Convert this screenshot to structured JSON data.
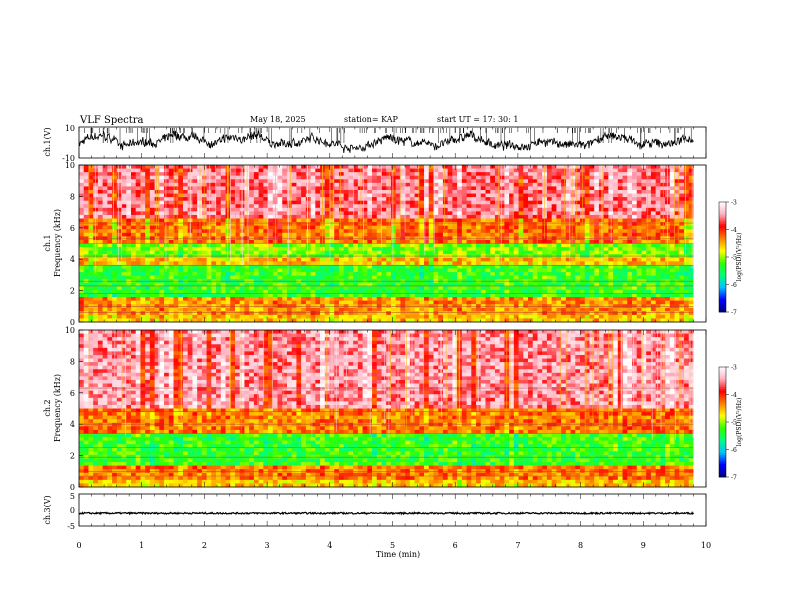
{
  "header": {
    "title": "VLF Spectra",
    "date": "May 18, 2025",
    "station": "station= KAP",
    "start": "start  UT  =   17: 30: 1"
  },
  "chart_data": [
    {
      "type": "line",
      "panel": "ch1-waveform",
      "ylabel": "ch.1(V)",
      "ylim": [
        -10,
        10
      ],
      "yticks": [
        "10",
        "-10"
      ],
      "xlim": [
        0,
        10
      ],
      "color": "#000000",
      "note": "noisy broadband voltage trace, amplitude roughly -6 to +5 V"
    },
    {
      "type": "heatmap",
      "panel": "ch1-spectrogram",
      "ylabel": "ch.1",
      "ylabel2": "Frequency (kHz)",
      "ylim": [
        0,
        10
      ],
      "yticks": [
        "0",
        "2",
        "4",
        "6",
        "8",
        "10"
      ],
      "xlim": [
        0,
        9.8
      ],
      "bands": [
        {
          "from": 0,
          "to": 0.5,
          "level": -4.6
        },
        {
          "from": 0.5,
          "to": 1.5,
          "level": -4.4
        },
        {
          "from": 1.5,
          "to": 3.6,
          "level": -5.3
        },
        {
          "from": 3.6,
          "to": 4.2,
          "level": -4.6
        },
        {
          "from": 4.2,
          "to": 5.0,
          "level": -5.1
        },
        {
          "from": 5.0,
          "to": 6.5,
          "level": -4.3
        },
        {
          "from": 6.5,
          "to": 10,
          "level": -3.6
        }
      ],
      "lines_khz": [
        0.6,
        1.0,
        1.8,
        2.3,
        2.6,
        3.6,
        4.2,
        5.0,
        5.3,
        6.3
      ],
      "colorbar": {
        "label": "log(PSD)(V²/Hz)",
        "ticks": [
          "-3",
          "-4",
          "-5",
          "-6",
          "-7"
        ],
        "range": [
          -7,
          -3
        ]
      }
    },
    {
      "type": "heatmap",
      "panel": "ch2-spectrogram",
      "ylabel": "ch.2",
      "ylabel2": "Frequency (kHz)",
      "ylim": [
        0,
        10
      ],
      "yticks": [
        "0",
        "2",
        "4",
        "6",
        "8",
        "10"
      ],
      "xlim": [
        0,
        9.8
      ],
      "bands": [
        {
          "from": 0,
          "to": 0.5,
          "level": -4.6
        },
        {
          "from": 0.5,
          "to": 1.4,
          "level": -4.3
        },
        {
          "from": 1.4,
          "to": 3.4,
          "level": -5.3
        },
        {
          "from": 3.4,
          "to": 5.0,
          "level": -4.3
        },
        {
          "from": 5.0,
          "to": 10,
          "level": -3.5
        }
      ],
      "lines_khz": [
        0.7,
        1.0,
        1.9,
        2.5,
        3.4,
        4.0,
        4.8,
        6.3
      ],
      "colorbar": {
        "label": "log(PSD)(V²/Hz)",
        "ticks": [
          "-3",
          "-4",
          "-5",
          "-6",
          "-7"
        ],
        "range": [
          -7,
          -3
        ]
      }
    },
    {
      "type": "line",
      "panel": "ch3-waveform",
      "ylabel": "ch.3(V)",
      "ylim": [
        -5,
        5
      ],
      "yticks": [
        "5",
        "0",
        "-5"
      ],
      "xlim": [
        0,
        10
      ],
      "color": "#000000",
      "note": "flat trace near -1 V with small noise"
    }
  ],
  "xaxis": {
    "label": "Time  (min)",
    "ticks": [
      "0",
      "1",
      "2",
      "3",
      "4",
      "5",
      "6",
      "7",
      "8",
      "9",
      "10"
    ],
    "range": [
      0,
      10
    ]
  },
  "colors": {
    "scale": [
      "#000080",
      "#0000ff",
      "#00c0ff",
      "#00ff80",
      "#30ff00",
      "#ffff00",
      "#ff8000",
      "#ff0000",
      "#ffb0c0",
      "#ffffff"
    ]
  }
}
